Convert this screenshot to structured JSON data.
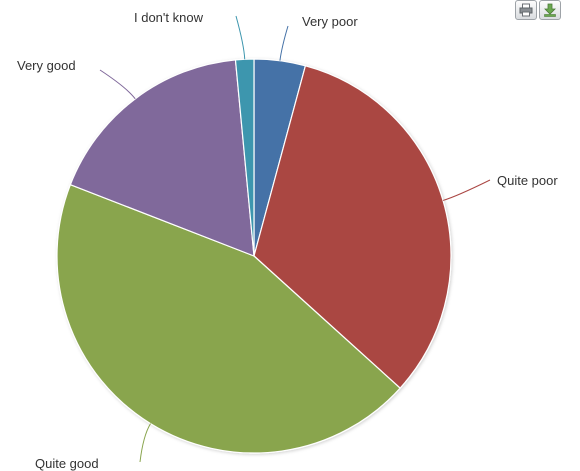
{
  "toolbar": {
    "print_icon": "printer-icon",
    "export_icon": "download-arrow-icon"
  },
  "chart_data": {
    "type": "pie",
    "title": "",
    "slices": [
      {
        "label": "Very poor",
        "value": 4.2,
        "color": "#4572A7"
      },
      {
        "label": "Quite poor",
        "value": 32.5,
        "color": "#AA4643"
      },
      {
        "label": "Quite good",
        "value": 44.2,
        "color": "#89A54E"
      },
      {
        "label": "Very good",
        "value": 17.6,
        "color": "#80699B"
      },
      {
        "label": "I don't know",
        "value": 1.5,
        "color": "#3D96AE"
      }
    ]
  }
}
